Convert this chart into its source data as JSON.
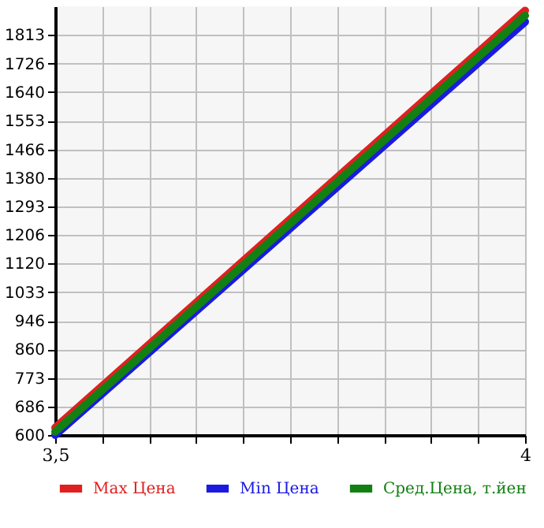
{
  "chart_data": {
    "type": "line",
    "x": [
      3.5,
      4
    ],
    "series": [
      {
        "name": "Max Цена",
        "color": "#e02020",
        "values": [
          622,
          1887
        ]
      },
      {
        "name": "Min Цена",
        "color": "#1a1ae0",
        "values": [
          600,
          1853
        ]
      },
      {
        "name": "Сред.Цена, т.йен",
        "color": "#138013",
        "values": [
          610,
          1872
        ]
      }
    ],
    "xlim": [
      3.5,
      4
    ],
    "xticks": [
      {
        "value": 3.5,
        "label": "3,5"
      },
      {
        "value": 3.55,
        "label": null
      },
      {
        "value": 3.6,
        "label": null
      },
      {
        "value": 3.65,
        "label": null
      },
      {
        "value": 3.7,
        "label": null
      },
      {
        "value": 3.75,
        "label": null
      },
      {
        "value": 3.8,
        "label": null
      },
      {
        "value": 3.85,
        "label": null
      },
      {
        "value": 3.9,
        "label": null
      },
      {
        "value": 3.95,
        "label": null
      },
      {
        "value": 4,
        "label": "4"
      }
    ],
    "ylim": [
      600,
      1900
    ],
    "yticks": [
      600,
      686,
      773,
      860,
      946,
      1033,
      1120,
      1206,
      1293,
      1380,
      1466,
      1553,
      1640,
      1726,
      1813
    ],
    "grid": true,
    "legend": "bottom",
    "marker": "none",
    "line_style": "solid"
  }
}
